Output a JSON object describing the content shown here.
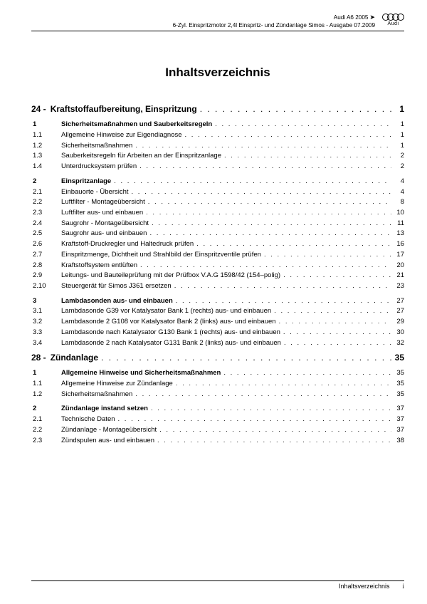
{
  "header": {
    "line1": "Audi A6 2005",
    "line2": "6-Zyl. Einspritzmotor 2,4l Einspritz- und Zündanlage Simos - Ausgabe 07.2009",
    "logo_text": "Audi"
  },
  "title": "Inhaltsverzeichnis",
  "dots": ". . . . . . . . . . . . . . . . . . . . . . . . . . . . . . . . . . . . . . . . . . . . . . . . . . . . . . . . . . . . . . . . . . . . . . . . . . . . . . . . . . . . . . . . . . . . . . . . . . . . . . . . . . . . . .",
  "chapters": [
    {
      "num": "24 -",
      "title": "Kraftstoffaufbereitung, Einspritzung",
      "page": "1",
      "groups": [
        [
          {
            "num": "1",
            "title": "Sicherheitsmaßnahmen und Sauberkeitsregeln",
            "page": "1",
            "section": true
          },
          {
            "num": "1.1",
            "title": "Allgemeine Hinweise zur Eigendiagnose",
            "page": "1"
          },
          {
            "num": "1.2",
            "title": "Sicherheitsmaßnahmen",
            "page": "1"
          },
          {
            "num": "1.3",
            "title": "Sauberkeitsregeln für Arbeiten an der Einspritzanlage",
            "page": "2"
          },
          {
            "num": "1.4",
            "title": "Unterdrucksystem prüfen",
            "page": "2"
          }
        ],
        [
          {
            "num": "2",
            "title": "Einspritzanlage",
            "page": "4",
            "section": true
          },
          {
            "num": "2.1",
            "title": "Einbauorte - Übersicht",
            "page": "4"
          },
          {
            "num": "2.2",
            "title": "Luftfilter - Montageübersicht",
            "page": "8"
          },
          {
            "num": "2.3",
            "title": "Luftfilter aus- und einbauen",
            "page": "10"
          },
          {
            "num": "2.4",
            "title": "Saugrohr - Montageübersicht",
            "page": "11"
          },
          {
            "num": "2.5",
            "title": "Saugrohr aus- und einbauen",
            "page": "13"
          },
          {
            "num": "2.6",
            "title": "Kraftstoff-Druckregler und Haltedruck prüfen",
            "page": "16"
          },
          {
            "num": "2.7",
            "title": "Einspritzmenge, Dichtheit und Strahlbild der Einspritzventile prüfen",
            "page": "17"
          },
          {
            "num": "2.8",
            "title": "Kraftstoffsystem entlüften",
            "page": "20"
          },
          {
            "num": "2.9",
            "title": "Leitungs- und Bauteileprüfung mit der Prüfbox V.A.G 1598/42 (154–polig)",
            "page": "21"
          },
          {
            "num": "2.10",
            "title": "Steuergerät für Simos J361 ersetzen",
            "page": "23"
          }
        ],
        [
          {
            "num": "3",
            "title": "Lambdasonden aus- und einbauen",
            "page": "27",
            "section": true
          },
          {
            "num": "3.1",
            "title": "Lambdasonde G39 vor Katalysator Bank 1 (rechts) aus- und einbauen",
            "page": "27"
          },
          {
            "num": "3.2",
            "title": "Lambdasonde 2 G108 vor Katalysator Bank 2 (links) aus- und einbauen",
            "page": "29"
          },
          {
            "num": "3.3",
            "title": "Lambdasonde nach Katalysator G130 Bank  1 (rechts) aus- und einbauen",
            "page": "30"
          },
          {
            "num": "3.4",
            "title": "Lambdasonde 2 nach Katalysator G131 Bank  2 (links) aus- und einbauen",
            "page": "32"
          }
        ]
      ]
    },
    {
      "num": "28 -",
      "title": "Zündanlage",
      "page": "35",
      "groups": [
        [
          {
            "num": "1",
            "title": "Allgemeine Hinweise und Sicherheitsmaßnahmen",
            "page": "35",
            "section": true
          },
          {
            "num": "1.1",
            "title": "Allgemeine Hinweise zur Zündanlage",
            "page": "35"
          },
          {
            "num": "1.2",
            "title": "Sicherheitsmaßnahmen",
            "page": "35"
          }
        ],
        [
          {
            "num": "2",
            "title": "Zündanlage instand setzen",
            "page": "37",
            "section": true
          },
          {
            "num": "2.1",
            "title": "Technische Daten",
            "page": "37"
          },
          {
            "num": "2.2",
            "title": "Zündanlage - Montageübersicht",
            "page": "37"
          },
          {
            "num": "2.3",
            "title": "Zündspulen aus- und einbauen",
            "page": "38"
          }
        ]
      ]
    }
  ],
  "footer": {
    "text": "Inhaltsverzeichnis",
    "page": "i"
  }
}
